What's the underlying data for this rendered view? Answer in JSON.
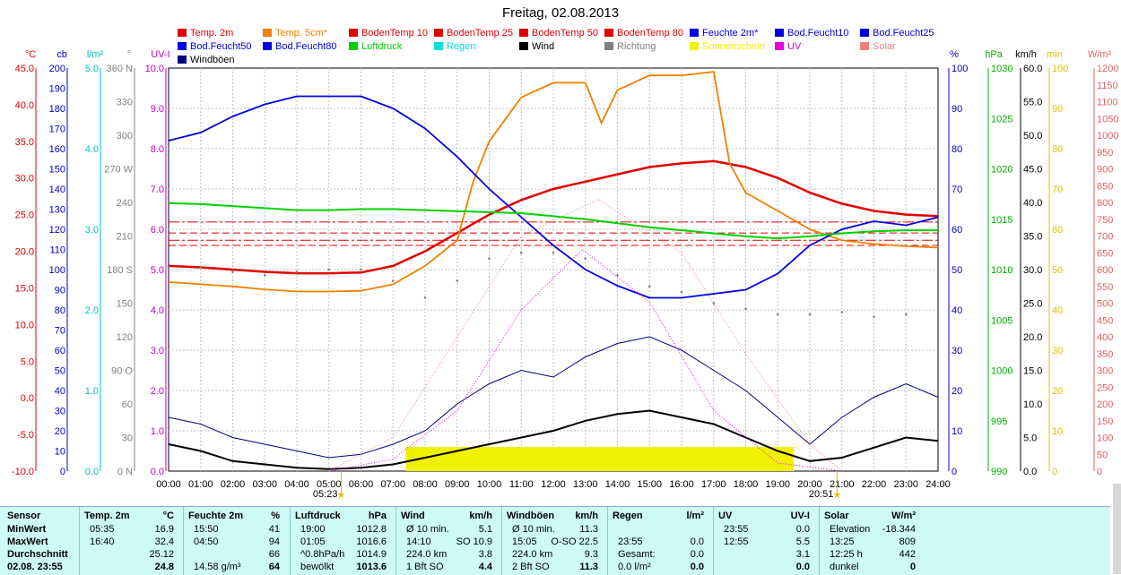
{
  "title": "Freitag, 02.08.2013",
  "legend": [
    {
      "label": "Temp. 2m",
      "color": "#e00000"
    },
    {
      "label": "Temp. 5cm*",
      "color": "#f08000"
    },
    {
      "label": "BodenTemp 10",
      "color": "#e00000"
    },
    {
      "label": "BodenTemp 25",
      "color": "#e00000"
    },
    {
      "label": "BodenTemp 50",
      "color": "#e00000"
    },
    {
      "label": "BodenTemp 80",
      "color": "#e00000"
    },
    {
      "label": "Feuchte 2m*",
      "color": "#0000e0"
    },
    {
      "label": "Bod.Feucht10",
      "color": "#0000e0"
    },
    {
      "label": "Bod.Feucht25",
      "color": "#0000e0"
    },
    {
      "label": "Bod.Feucht50",
      "color": "#0000e0"
    },
    {
      "label": "Bod.Feucht80",
      "color": "#0000e0"
    },
    {
      "label": "Luftdruck",
      "color": "#00d000"
    },
    {
      "label": "Regen",
      "color": "#00e0e0"
    },
    {
      "label": "Wind",
      "color": "#000000"
    },
    {
      "label": "Richtung",
      "color": "#808080"
    },
    {
      "label": "Sonnenschein",
      "color": "#f0f000"
    },
    {
      "label": "UV",
      "color": "#e000e0"
    },
    {
      "label": "Solar",
      "color": "#f08080"
    },
    {
      "label": "Windböen",
      "color": "#000080"
    }
  ],
  "axes": [
    {
      "unit": "°C",
      "color": "#e00000",
      "ticks": [
        "45.0",
        "40.0",
        "35.0",
        "30.0",
        "25.0",
        "20.0",
        "15.0",
        "10.0",
        "5.0",
        "0.0",
        "-5.0",
        "-10.0"
      ]
    },
    {
      "unit": "cb",
      "color": "#0000c0",
      "ticks": [
        "200",
        "190",
        "180",
        "170",
        "160",
        "150",
        "140",
        "130",
        "120",
        "110",
        "100",
        "90",
        "80",
        "70",
        "60",
        "50",
        "40",
        "30",
        "20",
        "10",
        "0"
      ]
    },
    {
      "unit": "l/m²",
      "color": "#00c0c0",
      "ticks": [
        "5.0",
        "4.0",
        "3.0",
        "2.0",
        "1.0",
        "0.0"
      ]
    },
    {
      "unit": "°",
      "color": "#808080",
      "ticks": [
        "360 N",
        "330",
        "300",
        "270 W",
        "240",
        "210",
        "180 S",
        "150",
        "120",
        "90 O",
        "60",
        "30",
        "0 N"
      ]
    },
    {
      "unit": "UV-I",
      "color": "#c000c0",
      "ticks": [
        "10.0",
        "9.0",
        "8.0",
        "7.0",
        "6.0",
        "5.0",
        "4.0",
        "3.0",
        "2.0",
        "1.0",
        "0.0"
      ]
    },
    {
      "unit": "%",
      "color": "#0000c0",
      "ticks": [
        "100",
        "90",
        "80",
        "70",
        "60",
        "50",
        "40",
        "30",
        "20",
        "10",
        "0"
      ]
    },
    {
      "unit": "hPa",
      "color": "#00b000",
      "ticks": [
        "1030",
        "1025",
        "1020",
        "1015",
        "1010",
        "1005",
        "1000",
        "995",
        "990"
      ]
    },
    {
      "unit": "km/h",
      "color": "#000000",
      "ticks": [
        "60.0",
        "55.0",
        "50.0",
        "45.0",
        "40.0",
        "35.0",
        "30.0",
        "25.0",
        "20.0",
        "15.0",
        "10.0",
        "5.0",
        "0.0"
      ]
    },
    {
      "unit": "min",
      "color": "#e0c000",
      "ticks": [
        "100",
        "90",
        "80",
        "70",
        "60",
        "50",
        "40",
        "30",
        "20",
        "10",
        "0"
      ]
    },
    {
      "unit": "W/m²",
      "color": "#e06060",
      "ticks": [
        "1200",
        "1150",
        "1100",
        "1050",
        "1000",
        "950",
        "900",
        "850",
        "800",
        "750",
        "700",
        "650",
        "600",
        "550",
        "500",
        "450",
        "400",
        "350",
        "300",
        "250",
        "200",
        "150",
        "100",
        "50",
        "0"
      ]
    }
  ],
  "sunrise": "05:23",
  "sunset": "20:51",
  "chart_data": {
    "type": "line",
    "x_label_ticks": [
      "00:00",
      "01:00",
      "02:00",
      "03:00",
      "04:00",
      "05:00",
      "06:00",
      "07:00",
      "08:00",
      "09:00",
      "10:00",
      "11:00",
      "12:00",
      "13:00",
      "14:00",
      "15:00",
      "16:00",
      "17:00",
      "18:00",
      "19:00",
      "20:00",
      "21:00",
      "22:00",
      "23:00",
      "24:00"
    ],
    "xlim": [
      0,
      24
    ],
    "series": [
      {
        "name": "Temp. 2m",
        "axis": "°C",
        "ylim": [
          -10,
          45
        ],
        "x": [
          0,
          1,
          2,
          3,
          4,
          5,
          6,
          7,
          8,
          9,
          10,
          11,
          12,
          13,
          14,
          15,
          16,
          17,
          18,
          19,
          20,
          21,
          22,
          23,
          24
        ],
        "y": [
          18.0,
          17.8,
          17.5,
          17.2,
          17.0,
          17.0,
          17.1,
          18.0,
          20.0,
          22.5,
          25.0,
          27.0,
          28.5,
          29.5,
          30.5,
          31.5,
          32.0,
          32.3,
          31.5,
          30.0,
          28.0,
          26.5,
          25.5,
          25.0,
          24.8
        ]
      },
      {
        "name": "Temp. 5cm*",
        "axis": "°C",
        "ylim": [
          -10,
          45
        ],
        "x": [
          0,
          1,
          2,
          3,
          4,
          5,
          6,
          7,
          8,
          9,
          9.5,
          10,
          11,
          12,
          13,
          13.5,
          14,
          15,
          16,
          17,
          17.5,
          18,
          19,
          20,
          21,
          22,
          23,
          24
        ],
        "y": [
          15.8,
          15.5,
          15.2,
          14.8,
          14.5,
          14.5,
          14.6,
          15.5,
          18.0,
          21.5,
          29.5,
          35.0,
          41.0,
          43.0,
          43.0,
          37.5,
          42.0,
          44.0,
          44.0,
          44.5,
          32.0,
          28.0,
          25.5,
          23.0,
          21.5,
          21.0,
          20.7,
          20.5
        ]
      },
      {
        "name": "Feuchte 2m*",
        "axis": "%",
        "ylim": [
          0,
          100
        ],
        "x": [
          0,
          1,
          2,
          3,
          4,
          5,
          6,
          7,
          8,
          9,
          10,
          11,
          12,
          13,
          14,
          15,
          16,
          17,
          18,
          19,
          20,
          21,
          22,
          23,
          24
        ],
        "y": [
          82,
          84,
          88,
          91,
          93,
          93,
          93,
          90,
          85,
          78,
          70,
          63,
          56,
          50,
          46,
          43,
          43,
          44,
          45,
          49,
          56,
          60,
          62,
          61,
          63
        ]
      },
      {
        "name": "Luftdruck",
        "axis": "hPa",
        "ylim": [
          990,
          1030
        ],
        "x": [
          0,
          1,
          2,
          3,
          4,
          5,
          6,
          7,
          8,
          9,
          10,
          11,
          12,
          13,
          14,
          15,
          16,
          17,
          18,
          19,
          20,
          21,
          22,
          23,
          24
        ],
        "y": [
          1016.6,
          1016.5,
          1016.3,
          1016.1,
          1015.9,
          1015.9,
          1016.0,
          1016.0,
          1015.9,
          1015.8,
          1015.7,
          1015.6,
          1015.3,
          1015.0,
          1014.6,
          1014.2,
          1013.9,
          1013.6,
          1013.3,
          1013.1,
          1013.3,
          1013.6,
          1013.8,
          1013.9,
          1013.9
        ]
      },
      {
        "name": "Wind",
        "axis": "km/h",
        "ylim": [
          0,
          60
        ],
        "x": [
          0,
          1,
          2,
          3,
          4,
          5,
          6,
          7,
          8,
          9,
          10,
          11,
          12,
          13,
          14,
          15,
          16,
          17,
          18,
          19,
          20,
          21,
          22,
          23,
          24
        ],
        "y": [
          4.0,
          3.0,
          1.5,
          1.0,
          0.5,
          0.3,
          0.5,
          1.0,
          2.0,
          3.0,
          4.0,
          5.0,
          6.0,
          7.5,
          8.5,
          9.0,
          8.0,
          7.0,
          5.0,
          3.0,
          1.5,
          2.0,
          3.5,
          5.0,
          4.5
        ]
      },
      {
        "name": "Windböen",
        "axis": "km/h",
        "ylim": [
          0,
          60
        ],
        "x": [
          0,
          1,
          2,
          3,
          4,
          5,
          6,
          7,
          8,
          9,
          10,
          11,
          12,
          13,
          14,
          15,
          16,
          17,
          18,
          19,
          20,
          21,
          22,
          23,
          24
        ],
        "y": [
          8.0,
          7.0,
          5.0,
          4.0,
          3.0,
          2.0,
          2.5,
          4.0,
          6.0,
          10.0,
          13.0,
          15.0,
          14.0,
          17.0,
          19.0,
          20.0,
          18.0,
          15.0,
          12.0,
          8.0,
          4.0,
          8.0,
          11.0,
          13.0,
          11.0
        ]
      },
      {
        "name": "Richtung",
        "axis": "°",
        "ylim": [
          0,
          360
        ],
        "x": [
          0,
          1,
          2,
          3,
          4,
          5,
          6,
          7,
          8,
          9,
          10,
          11,
          12,
          13,
          14,
          15,
          16,
          17,
          18,
          19,
          20,
          21,
          22,
          23,
          24
        ],
        "y": [
          182,
          182,
          178,
          175,
          178,
          180,
          180,
          170,
          155,
          170,
          190,
          195,
          195,
          190,
          175,
          165,
          160,
          150,
          145,
          140,
          140,
          142,
          138,
          140,
          140
        ]
      },
      {
        "name": "UV",
        "axis": "UV-I",
        "ylim": [
          0,
          10
        ],
        "x": [
          5,
          7,
          9,
          11,
          12.9,
          15,
          17,
          19,
          21
        ],
        "y": [
          0,
          0.3,
          1.5,
          4.0,
          5.5,
          4.2,
          1.5,
          0.2,
          0
        ]
      },
      {
        "name": "Solar",
        "axis": "W/m²",
        "ylim": [
          0,
          1200
        ],
        "x": [
          5,
          7,
          9,
          11,
          13.4,
          16,
          18,
          20,
          21
        ],
        "y": [
          0,
          100,
          400,
          700,
          809,
          650,
          350,
          80,
          0
        ]
      }
    ],
    "reference_lines": [
      {
        "name": "BodenTemp 10",
        "axis": "°C",
        "y": 24.0
      },
      {
        "name": "BodenTemp 25",
        "axis": "°C",
        "y": 22.5
      },
      {
        "name": "BodenTemp 50",
        "axis": "°C",
        "y": 21.5
      },
      {
        "name": "BodenTemp 80",
        "axis": "°C",
        "y": 20.8
      }
    ],
    "sunshine_bars": {
      "axis": "min",
      "from": 7.4,
      "to": 19.5,
      "value": 6
    }
  },
  "stats": {
    "headers": [
      {
        "name": "Sensor"
      },
      {
        "name": "Temp. 2m",
        "unit": "°C"
      },
      {
        "name": "Feuchte 2m",
        "unit": "%"
      },
      {
        "name": "Luftdruck",
        "unit": "hPa"
      },
      {
        "name": "Wind",
        "unit": "km/h"
      },
      {
        "name": "Windböen",
        "unit": "km/h"
      },
      {
        "name": "Regen",
        "unit": "l/m²"
      },
      {
        "name": "UV",
        "unit": "UV-I"
      },
      {
        "name": "Solar",
        "unit": "W/m²"
      }
    ],
    "rows": [
      {
        "label": "MinWert",
        "cols": [
          [
            "05:35",
            "16.9"
          ],
          [
            "15:50",
            "41"
          ],
          [
            "19:00",
            "1012.8"
          ],
          [
            "Ø 10 min.",
            "5.1"
          ],
          [
            "Ø 10 min.",
            "11.3"
          ],
          [
            "",
            ""
          ],
          [
            "23:55",
            "0.0"
          ],
          [
            "Elevation",
            "-18.344"
          ]
        ]
      },
      {
        "label": "MaxWert",
        "cols": [
          [
            "16:40",
            "32.4"
          ],
          [
            "04:50",
            "94"
          ],
          [
            "01:05",
            "1016.6"
          ],
          [
            "14:10",
            "SO 10.9"
          ],
          [
            "15:05",
            "O-SO 22.5"
          ],
          [
            "23:55",
            "0.0"
          ],
          [
            "12:55",
            "5.5"
          ],
          [
            "13:25",
            "809"
          ]
        ]
      },
      {
        "label": "Durchschnitt",
        "cols": [
          [
            "",
            "25.12"
          ],
          [
            "",
            "66"
          ],
          [
            "^0.8hPa/h",
            "1014.9"
          ],
          [
            "224.0 km",
            "3.8"
          ],
          [
            "224.0 km",
            "9.3"
          ],
          [
            "Gesamt:",
            "0.0"
          ],
          [
            "",
            "3.1"
          ],
          [
            "12:25 h",
            "442"
          ]
        ]
      },
      {
        "label": "02.08. 23:55",
        "cols": [
          [
            "",
            "24.8"
          ],
          [
            "14.58 g/m³",
            "64"
          ],
          [
            "bewölkt",
            "1013.6"
          ],
          [
            "1 Bft SO",
            "4.4"
          ],
          [
            "2 Bft SO",
            "11.3"
          ],
          [
            "0.0 l/m²",
            "0.0"
          ],
          [
            "",
            "0.0"
          ],
          [
            "dunkel",
            "0"
          ]
        ]
      }
    ]
  }
}
